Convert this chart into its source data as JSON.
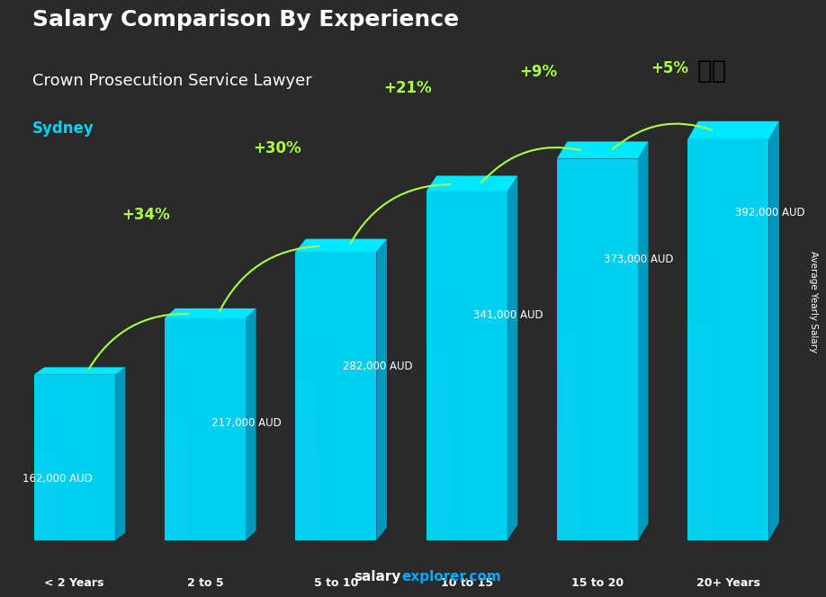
{
  "title": "Salary Comparison By Experience",
  "subtitle": "Crown Prosecution Service Lawyer",
  "city": "Sydney",
  "categories": [
    "< 2 Years",
    "2 to 5",
    "5 to 10",
    "10 to 15",
    "15 to 20",
    "20+ Years"
  ],
  "values": [
    162000,
    217000,
    282000,
    341000,
    373000,
    392000
  ],
  "labels": [
    "162,000 AUD",
    "217,000 AUD",
    "282,000 AUD",
    "341,000 AUD",
    "373,000 AUD",
    "392,000 AUD"
  ],
  "pct_changes": [
    "+34%",
    "+30%",
    "+21%",
    "+9%",
    "+5%"
  ],
  "bar_color_top": "#00d4f5",
  "bar_color_mid": "#00aacc",
  "bar_color_side": "#007a99",
  "background_color": "#1a1a2e",
  "ylabel": "Average Yearly Salary",
  "footer": "salaryexplorer.com",
  "title_color": "#ffffff",
  "subtitle_color": "#ffffff",
  "city_color": "#00d4f5",
  "label_color": "#ffffff",
  "pct_color": "#aaff44",
  "footer_salary_color": "#ffffff",
  "footer_explorer_color": "#00aaff"
}
